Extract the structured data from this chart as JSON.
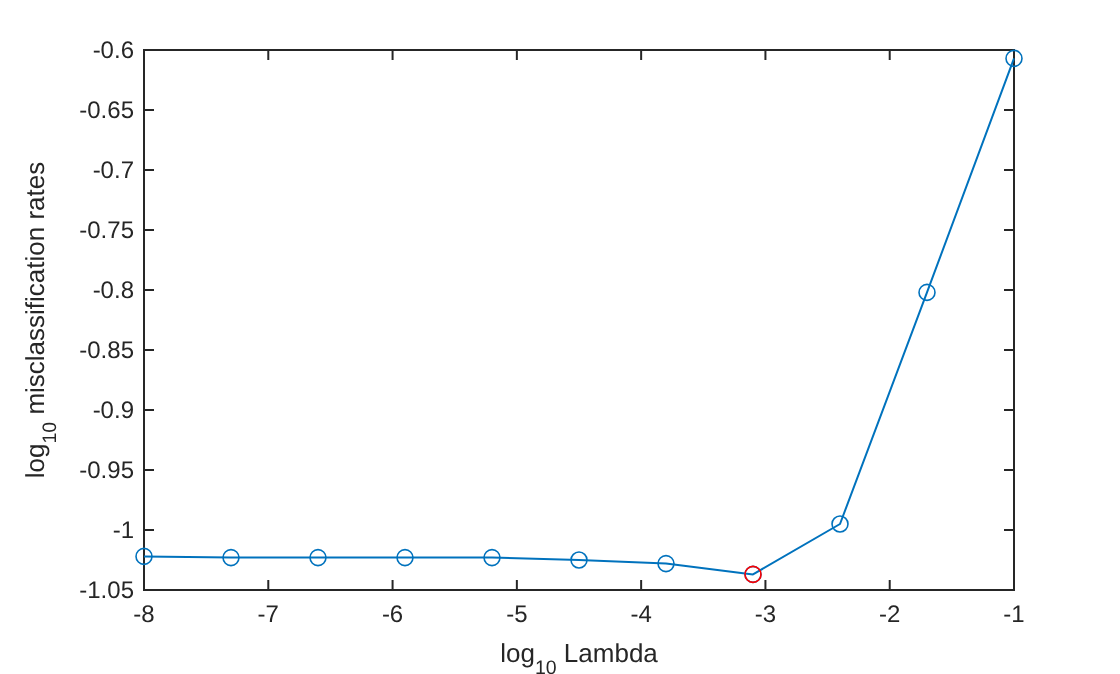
{
  "chart_data": {
    "type": "line",
    "xlabel": "log$_{10}$ Lambda",
    "ylabel": "log$_{10}$ misclassification rates",
    "x": [
      -8,
      -7.3,
      -6.6,
      -5.9,
      -5.2,
      -4.5,
      -3.8,
      -3.1,
      -2.4,
      -1.7,
      -1
    ],
    "series": [
      {
        "type": "line",
        "color": "#0072bd",
        "marker": "circle",
        "values": [
          -1.022,
          -1.023,
          -1.023,
          -1.023,
          -1.023,
          -1.025,
          -1.028,
          -1.037,
          -0.995,
          -0.802,
          -0.607
        ]
      },
      {
        "type": "scatter",
        "color": "#ff0000",
        "marker": "circle",
        "x": [
          -3.1
        ],
        "values": [
          -1.037
        ]
      }
    ],
    "xlim": [
      -8,
      -1
    ],
    "xticks": [
      -8,
      -7,
      -6,
      -5,
      -4,
      -3,
      -2,
      -1
    ],
    "ylim": [
      -1.05,
      -0.6
    ],
    "yticks": [
      -1.05,
      -1,
      -0.95,
      -0.9,
      -0.85,
      -0.8,
      -0.75,
      -0.7,
      -0.65,
      -0.6
    ],
    "grid": false
  }
}
